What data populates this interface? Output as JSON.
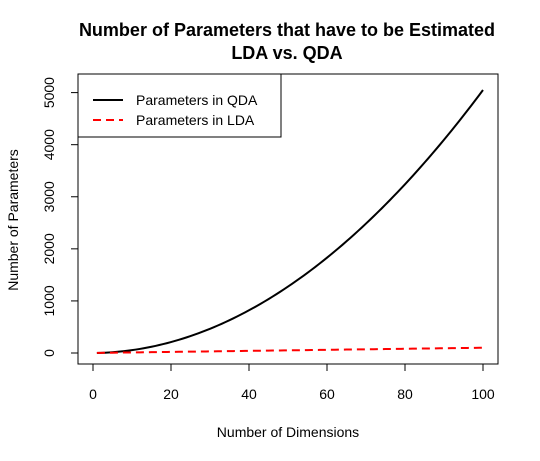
{
  "chart_data": {
    "type": "line",
    "title": "Number of Parameters that have to be Estimated",
    "subtitle": "LDA vs. QDA",
    "xlabel": "Number of Dimensions",
    "ylabel": "Number of Parameters",
    "xlim": [
      0,
      100
    ],
    "ylim": [
      0,
      5050
    ],
    "x_ticks": [
      0,
      20,
      40,
      60,
      80,
      100
    ],
    "y_ticks": [
      0,
      1000,
      2000,
      3000,
      4000,
      5000
    ],
    "grid": false,
    "legend_position": "top-left",
    "series": [
      {
        "name": "Parameters in QDA",
        "color": "#000000",
        "line_style": "solid",
        "formula": "p*(p+1)/2"
      },
      {
        "name": "Parameters in LDA",
        "color": "#ff0000",
        "line_style": "dashed",
        "formula": "p+1"
      }
    ]
  }
}
